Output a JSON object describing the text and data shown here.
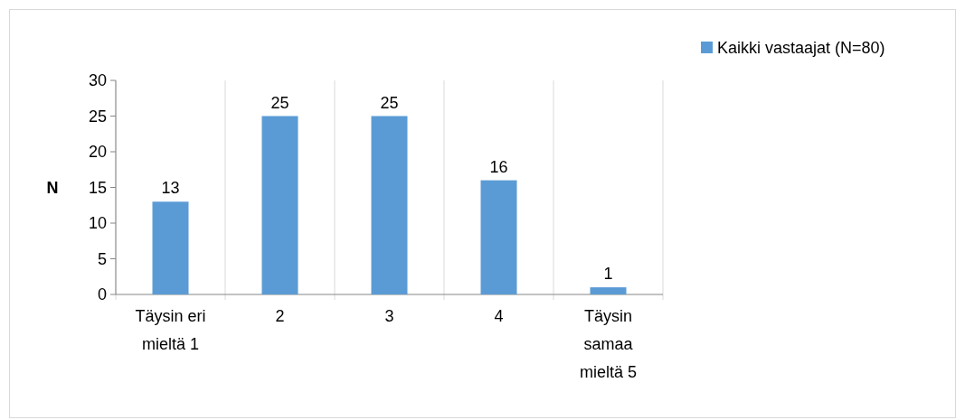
{
  "chart_data": {
    "type": "bar",
    "ylabel": "N",
    "categories": [
      "Täysin eri mieltä 1",
      "2",
      "3",
      "4",
      "Täysin samaa mieltä 5"
    ],
    "series": [
      {
        "name": "Kaikki vastaajat (N=80)",
        "color": "#5b9bd5",
        "values": [
          13,
          25,
          25,
          16,
          1
        ]
      }
    ],
    "ylim": [
      0,
      30
    ],
    "yticks": [
      0,
      5,
      10,
      15,
      20,
      25,
      30
    ],
    "grid": "x",
    "legend": "top right",
    "data_labels": true
  }
}
